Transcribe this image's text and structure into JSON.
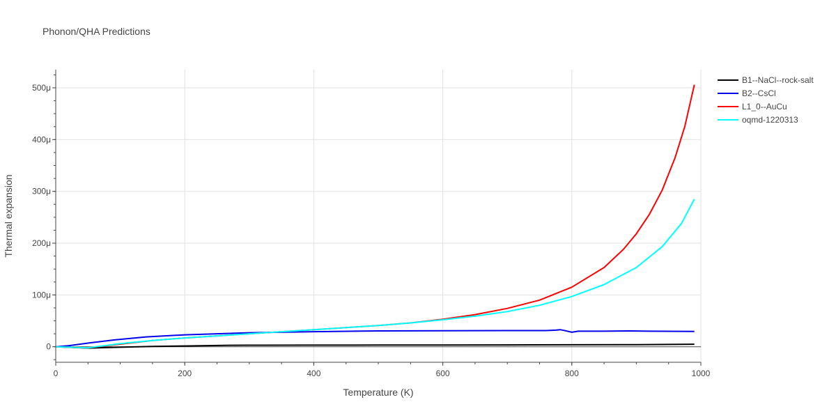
{
  "chart_data": {
    "type": "line",
    "title": "Phonon/QHA Predictions",
    "xlabel": "Temperature (K)",
    "ylabel": "Thermal expansion",
    "xlim": [
      0,
      1000
    ],
    "ylim": [
      -3e-05,
      0.000535
    ],
    "x_ticks": [
      0,
      200,
      400,
      600,
      800,
      1000
    ],
    "x_tick_labels": [
      "0",
      "200",
      "400",
      "600",
      "800",
      "1000"
    ],
    "y_ticks": [
      0,
      0.0001,
      0.0002,
      0.0003,
      0.0004,
      0.0005
    ],
    "y_tick_labels": [
      "0",
      "100μ",
      "200μ",
      "300μ",
      "400μ",
      "500μ"
    ],
    "grid": true,
    "legend_position": "top-right",
    "series": [
      {
        "name": "B1--NaCl--rock-salt",
        "color": "#000000",
        "x": [
          0,
          50,
          100,
          150,
          200,
          270,
          300,
          400,
          500,
          600,
          700,
          800,
          900,
          990
        ],
        "y": [
          0,
          -2.5e-06,
          -1e-06,
          5e-07,
          1.5e-06,
          2.8e-06,
          3e-06,
          3.1e-06,
          3.2e-06,
          3.3e-06,
          3.5e-06,
          3.7e-06,
          4.1e-06,
          4.8e-06
        ]
      },
      {
        "name": "B2--CsCl",
        "color": "#0000ee",
        "x": [
          0,
          20,
          50,
          90,
          140,
          200,
          300,
          400,
          500,
          600,
          700,
          760,
          775,
          782,
          790,
          800,
          810,
          850,
          890,
          920,
          990
        ],
        "y": [
          0,
          2e-06,
          7e-06,
          1.3e-05,
          1.9e-05,
          2.3e-05,
          2.7e-05,
          2.9e-05,
          3.05e-05,
          3.1e-05,
          3.12e-05,
          3.12e-05,
          3.2e-05,
          3.3e-05,
          3.1e-05,
          2.8e-05,
          3e-05,
          3e-05,
          3.05e-05,
          3e-05,
          2.95e-05
        ]
      },
      {
        "name": "L1_0--AuCu",
        "color": "#ff0000",
        "x": [
          0,
          50,
          100,
          150,
          200,
          250,
          300,
          350,
          400,
          450,
          500,
          550,
          600,
          650,
          700,
          750,
          800,
          850,
          880,
          900,
          920,
          940,
          960,
          975,
          990
        ],
        "y": [
          0,
          -2e-06,
          5e-06,
          1.2e-05,
          1.7e-05,
          2.1e-05,
          2.5e-05,
          2.9e-05,
          3.3e-05,
          3.7e-05,
          4.1e-05,
          4.6e-05,
          5.3e-05,
          6.2e-05,
          7.4e-05,
          9e-05,
          0.000115,
          0.000153,
          0.000188,
          0.000218,
          0.000255,
          0.000302,
          0.000365,
          0.000425,
          0.000506
        ]
      },
      {
        "name": "oqmd-1220313",
        "color": "#00ffff",
        "x": [
          0,
          50,
          100,
          150,
          200,
          250,
          300,
          350,
          400,
          450,
          500,
          550,
          600,
          650,
          700,
          750,
          800,
          850,
          900,
          940,
          970,
          990
        ],
        "y": [
          0,
          -2e-06,
          6e-06,
          1.2e-05,
          1.7e-05,
          2.1e-05,
          2.5e-05,
          2.9e-05,
          3.3e-05,
          3.7e-05,
          4.1e-05,
          4.6e-05,
          5.2e-05,
          5.9e-05,
          6.8e-05,
          8e-05,
          9.7e-05,
          0.00012,
          0.000153,
          0.000193,
          0.000238,
          0.000285
        ]
      }
    ]
  }
}
